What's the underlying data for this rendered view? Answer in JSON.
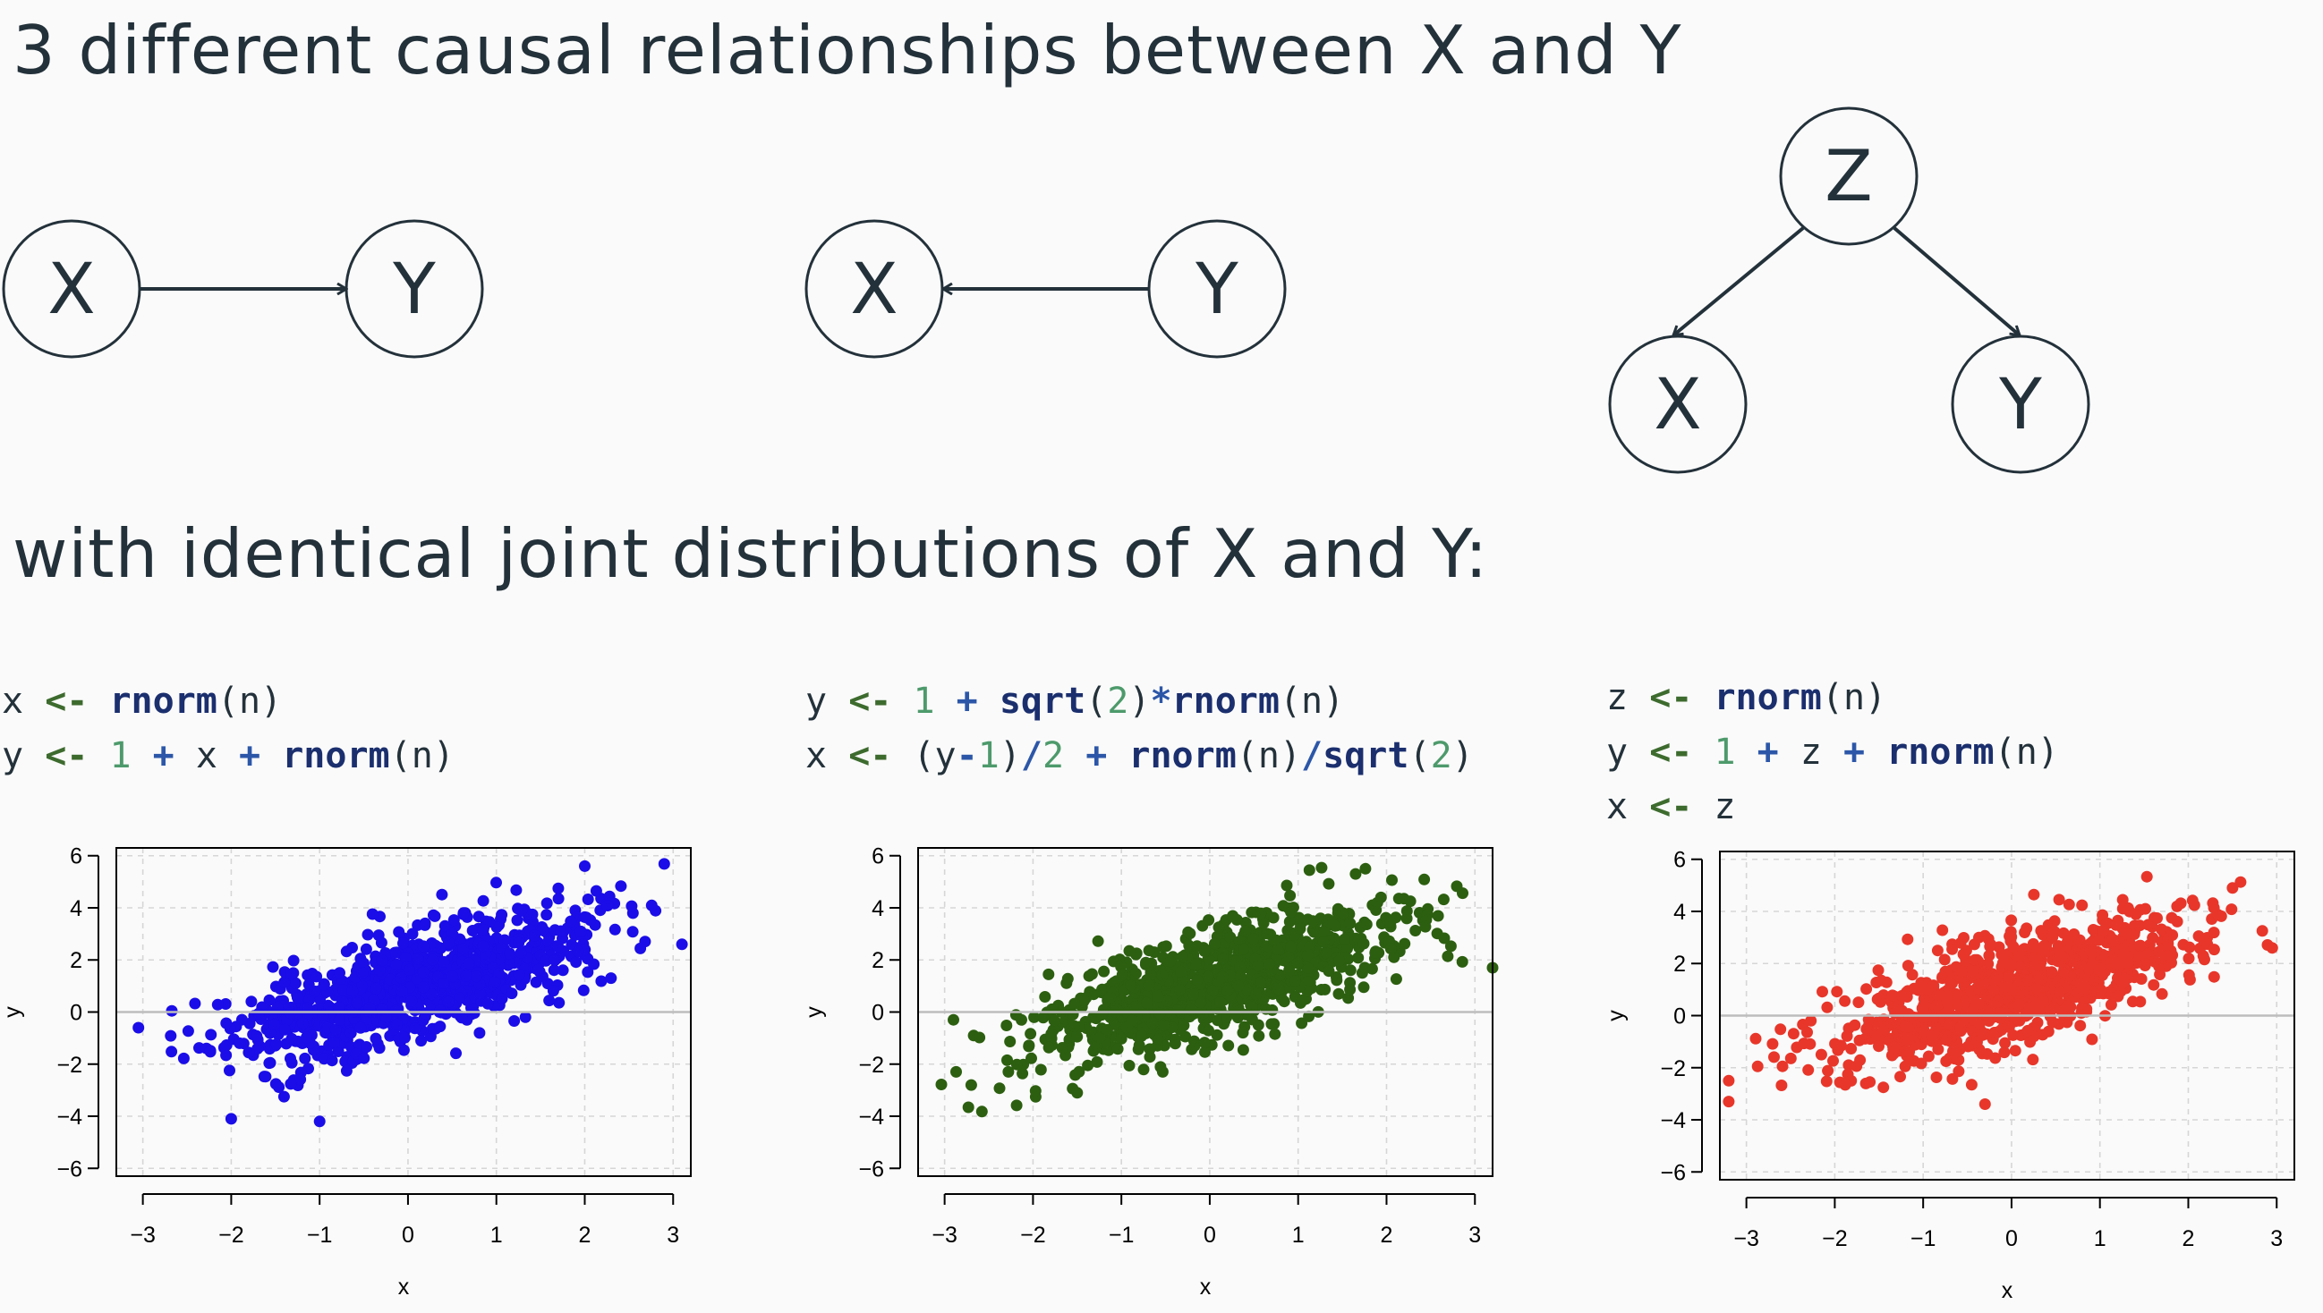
{
  "title": "3 different causal relationships between X and Y",
  "subtitle": "with identical joint distributions of X and Y:",
  "dags": [
    {
      "nodes": [
        "X",
        "Y"
      ],
      "edge": "X → Y"
    },
    {
      "nodes": [
        "X",
        "Y"
      ],
      "edge": "Y → X"
    },
    {
      "nodes": [
        "Z",
        "X",
        "Y"
      ],
      "edges": [
        "Z → X",
        "Z → Y"
      ]
    }
  ],
  "code_blocks": [
    {
      "lines": [
        [
          [
            "var",
            "x"
          ],
          [
            "sp",
            " "
          ],
          [
            "op",
            "<-"
          ],
          [
            "sp",
            " "
          ],
          [
            "fn",
            "rnorm"
          ],
          [
            "var",
            "(n)"
          ]
        ],
        [
          [
            "var",
            "y"
          ],
          [
            "sp",
            " "
          ],
          [
            "op",
            "<-"
          ],
          [
            "sp",
            " "
          ],
          [
            "num",
            "1"
          ],
          [
            "sp",
            " "
          ],
          [
            "arith",
            "+"
          ],
          [
            "sp",
            " "
          ],
          [
            "var",
            "x"
          ],
          [
            "sp",
            " "
          ],
          [
            "arith",
            "+"
          ],
          [
            "sp",
            " "
          ],
          [
            "fn",
            "rnorm"
          ],
          [
            "var",
            "(n)"
          ]
        ]
      ]
    },
    {
      "lines": [
        [
          [
            "var",
            "y"
          ],
          [
            "sp",
            " "
          ],
          [
            "op",
            "<-"
          ],
          [
            "sp",
            " "
          ],
          [
            "num",
            "1"
          ],
          [
            "sp",
            " "
          ],
          [
            "arith",
            "+"
          ],
          [
            "sp",
            " "
          ],
          [
            "fn",
            "sqrt"
          ],
          [
            "var",
            "("
          ],
          [
            "num",
            "2"
          ],
          [
            "var",
            ")"
          ],
          [
            "arith",
            "*"
          ],
          [
            "fn",
            "rnorm"
          ],
          [
            "var",
            "(n)"
          ]
        ],
        [
          [
            "var",
            "x"
          ],
          [
            "sp",
            " "
          ],
          [
            "op",
            "<-"
          ],
          [
            "sp",
            " "
          ],
          [
            "var",
            "(y"
          ],
          [
            "arith",
            "-"
          ],
          [
            "num",
            "1"
          ],
          [
            "var",
            ")"
          ],
          [
            "arith",
            "/"
          ],
          [
            "num",
            "2"
          ],
          [
            "sp",
            " "
          ],
          [
            "arith",
            "+"
          ],
          [
            "sp",
            " "
          ],
          [
            "fn",
            "rnorm"
          ],
          [
            "var",
            "(n)"
          ],
          [
            "arith",
            "/"
          ],
          [
            "fn",
            "sqrt"
          ],
          [
            "var",
            "("
          ],
          [
            "num",
            "2"
          ],
          [
            "var",
            ")"
          ]
        ]
      ]
    },
    {
      "lines": [
        [
          [
            "var",
            "z"
          ],
          [
            "sp",
            " "
          ],
          [
            "op",
            "<-"
          ],
          [
            "sp",
            " "
          ],
          [
            "fn",
            "rnorm"
          ],
          [
            "var",
            "(n)"
          ]
        ],
        [
          [
            "var",
            "y"
          ],
          [
            "sp",
            " "
          ],
          [
            "op",
            "<-"
          ],
          [
            "sp",
            " "
          ],
          [
            "num",
            "1"
          ],
          [
            "sp",
            " "
          ],
          [
            "arith",
            "+"
          ],
          [
            "sp",
            " "
          ],
          [
            "var",
            "z"
          ],
          [
            "sp",
            " "
          ],
          [
            "arith",
            "+"
          ],
          [
            "sp",
            " "
          ],
          [
            "fn",
            "rnorm"
          ],
          [
            "var",
            "(n)"
          ]
        ],
        [
          [
            "var",
            "x"
          ],
          [
            "sp",
            " "
          ],
          [
            "op",
            "<-"
          ],
          [
            "sp",
            " "
          ],
          [
            "var",
            "z"
          ]
        ]
      ]
    }
  ],
  "chart_data": [
    {
      "type": "scatter",
      "xlabel": "x",
      "ylabel": "y",
      "xlim": [
        -3.3,
        3.2
      ],
      "ylim": [
        -6.3,
        6.3
      ],
      "xticks": [
        -3,
        -2,
        -1,
        0,
        1,
        2,
        3
      ],
      "yticks": [
        -6,
        -4,
        -2,
        0,
        2,
        4,
        6
      ],
      "hline": 0,
      "grid": true,
      "point_color": "#1a0de8",
      "n_points": 1000,
      "seed": 11,
      "model": {
        "slope": 1,
        "intercept": 1,
        "noise_sd": 1,
        "x_sd": 1
      },
      "outliers": [
        [
          -1.0,
          -4.2
        ],
        [
          -2.0,
          -4.1
        ],
        [
          2.0,
          5.6
        ],
        [
          3.1,
          2.6
        ],
        [
          -3.05,
          -0.6
        ]
      ]
    },
    {
      "type": "scatter",
      "xlabel": "x",
      "ylabel": "y",
      "xlim": [
        -3.3,
        3.2
      ],
      "ylim": [
        -6.3,
        6.3
      ],
      "xticks": [
        -3,
        -2,
        -1,
        0,
        1,
        2,
        3
      ],
      "yticks": [
        -6,
        -4,
        -2,
        0,
        2,
        4,
        6
      ],
      "hline": 0,
      "grid": true,
      "point_color": "#2c5f10",
      "n_points": 1000,
      "seed": 23,
      "model": {
        "slope": 1,
        "intercept": 1,
        "noise_sd": 1,
        "x_sd": 1
      },
      "outliers": [
        [
          3.2,
          1.7
        ],
        [
          -1.5,
          -3.1
        ],
        [
          1.65,
          5.3
        ],
        [
          -2.9,
          -0.3
        ]
      ]
    },
    {
      "type": "scatter",
      "xlabel": "x",
      "ylabel": "y",
      "xlim": [
        -3.3,
        3.2
      ],
      "ylim": [
        -6.3,
        6.3
      ],
      "xticks": [
        -3,
        -2,
        -1,
        0,
        1,
        2,
        3
      ],
      "yticks": [
        -6,
        -4,
        -2,
        0,
        2,
        4,
        6
      ],
      "hline": 0,
      "grid": true,
      "point_color": "#e8362a",
      "n_points": 1000,
      "seed": 37,
      "model": {
        "slope": 1,
        "intercept": 1,
        "noise_sd": 1,
        "x_sd": 1
      },
      "outliers": [
        [
          -3.2,
          -3.3
        ],
        [
          -3.2,
          -2.5
        ],
        [
          2.95,
          2.6
        ],
        [
          -0.3,
          -3.4
        ],
        [
          2.5,
          4.9
        ]
      ]
    }
  ]
}
